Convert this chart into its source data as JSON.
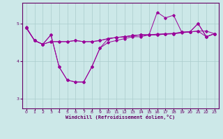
{
  "xlabel": "Windchill (Refroidissement éolien,°C)",
  "bg_color": "#cce8e8",
  "line_color": "#990099",
  "grid_color": "#aacccc",
  "axis_color": "#660066",
  "text_color": "#660066",
  "xlim": [
    -0.5,
    23.5
  ],
  "ylim": [
    2.75,
    5.55
  ],
  "yticks": [
    3,
    4,
    5
  ],
  "xticks": [
    0,
    1,
    2,
    3,
    4,
    5,
    6,
    7,
    8,
    9,
    10,
    11,
    12,
    13,
    14,
    15,
    16,
    17,
    18,
    19,
    20,
    21,
    22,
    23
  ],
  "line1_y": [
    4.9,
    4.55,
    4.45,
    4.7,
    3.85,
    3.5,
    3.45,
    3.45,
    3.85,
    4.35,
    4.5,
    4.55,
    4.6,
    4.65,
    4.65,
    4.7,
    4.7,
    4.72,
    4.73,
    4.75,
    4.78,
    4.8,
    4.65,
    4.73
  ],
  "line2_y": [
    4.88,
    4.55,
    4.45,
    4.52,
    4.52,
    4.52,
    4.55,
    4.52,
    4.52,
    4.55,
    4.6,
    4.63,
    4.65,
    4.68,
    4.7,
    4.7,
    4.72,
    4.73,
    4.74,
    4.77,
    4.78,
    4.8,
    4.8,
    4.73
  ],
  "line3_y": [
    4.88,
    4.55,
    4.45,
    4.52,
    4.52,
    4.52,
    4.55,
    4.52,
    4.52,
    4.55,
    4.6,
    4.63,
    4.65,
    4.68,
    4.7,
    4.7,
    5.3,
    5.15,
    5.22,
    4.77,
    4.78,
    5.0,
    4.65,
    4.73
  ],
  "line4_y": [
    4.88,
    4.55,
    4.45,
    4.7,
    3.85,
    3.5,
    3.45,
    3.45,
    3.85,
    4.35,
    4.6,
    4.63,
    4.65,
    4.68,
    4.7,
    4.7,
    4.7,
    4.72,
    4.73,
    4.77,
    4.78,
    5.0,
    4.65,
    4.73
  ]
}
